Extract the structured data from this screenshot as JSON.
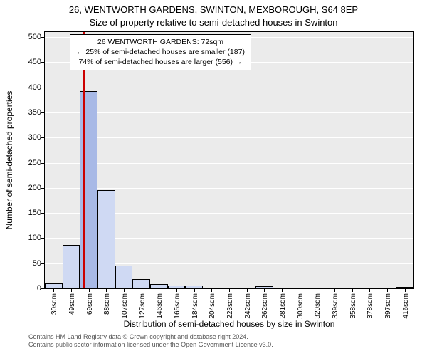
{
  "title_line1": "26, WENTWORTH GARDENS, SWINTON, MEXBOROUGH, S64 8EP",
  "title_line2": "Size of property relative to semi-detached houses in Swinton",
  "ylabel": "Number of semi-detached properties",
  "xlabel": "Distribution of semi-detached houses by size in Swinton",
  "footer_line1": "Contains HM Land Registry data © Crown copyright and database right 2024.",
  "footer_line2": "Contains public sector information licensed under the Open Government Licence v3.0.",
  "chart": {
    "type": "histogram",
    "background_color": "#ebebeb",
    "grid_color": "#ffffff",
    "border_color": "#000000",
    "bar_fill": "#cfd9f3",
    "bar_border": "#000000",
    "highlight_fill": "#a8b9e6",
    "vline_color": "#cc0000",
    "ylim": [
      0,
      510
    ],
    "yticks": [
      0,
      50,
      100,
      150,
      200,
      250,
      300,
      350,
      400,
      450,
      500
    ],
    "xlim": [
      0,
      21
    ],
    "xticks": [
      {
        "pos": 0.5,
        "label": "30sqm"
      },
      {
        "pos": 1.5,
        "label": "49sqm"
      },
      {
        "pos": 2.5,
        "label": "69sqm"
      },
      {
        "pos": 3.5,
        "label": "88sqm"
      },
      {
        "pos": 4.5,
        "label": "107sqm"
      },
      {
        "pos": 5.5,
        "label": "127sqm"
      },
      {
        "pos": 6.5,
        "label": "146sqm"
      },
      {
        "pos": 7.5,
        "label": "165sqm"
      },
      {
        "pos": 8.5,
        "label": "184sqm"
      },
      {
        "pos": 9.5,
        "label": "204sqm"
      },
      {
        "pos": 10.5,
        "label": "223sqm"
      },
      {
        "pos": 11.5,
        "label": "242sqm"
      },
      {
        "pos": 12.5,
        "label": "262sqm"
      },
      {
        "pos": 13.5,
        "label": "281sqm"
      },
      {
        "pos": 14.5,
        "label": "300sqm"
      },
      {
        "pos": 15.5,
        "label": "320sqm"
      },
      {
        "pos": 16.5,
        "label": "339sqm"
      },
      {
        "pos": 17.5,
        "label": "358sqm"
      },
      {
        "pos": 18.5,
        "label": "378sqm"
      },
      {
        "pos": 19.5,
        "label": "397sqm"
      },
      {
        "pos": 20.5,
        "label": "416sqm"
      }
    ],
    "bars": [
      {
        "x": 0,
        "value": 10,
        "highlight": false
      },
      {
        "x": 1,
        "value": 87,
        "highlight": false
      },
      {
        "x": 2,
        "value": 393,
        "highlight": true
      },
      {
        "x": 3,
        "value": 195,
        "highlight": false
      },
      {
        "x": 4,
        "value": 45,
        "highlight": false
      },
      {
        "x": 5,
        "value": 18,
        "highlight": false
      },
      {
        "x": 6,
        "value": 9,
        "highlight": false
      },
      {
        "x": 7,
        "value": 6,
        "highlight": false
      },
      {
        "x": 8,
        "value": 6,
        "highlight": false
      },
      {
        "x": 9,
        "value": 0,
        "highlight": false
      },
      {
        "x": 10,
        "value": 0,
        "highlight": false
      },
      {
        "x": 11,
        "value": 0,
        "highlight": false
      },
      {
        "x": 12,
        "value": 4,
        "highlight": false
      },
      {
        "x": 13,
        "value": 0,
        "highlight": false
      },
      {
        "x": 14,
        "value": 0,
        "highlight": false
      },
      {
        "x": 15,
        "value": 0,
        "highlight": false
      },
      {
        "x": 16,
        "value": 0,
        "highlight": false
      },
      {
        "x": 17,
        "value": 0,
        "highlight": false
      },
      {
        "x": 18,
        "value": 0,
        "highlight": false
      },
      {
        "x": 19,
        "value": 0,
        "highlight": false
      },
      {
        "x": 20,
        "value": 3,
        "highlight": false
      }
    ],
    "vline_x": 2.18
  },
  "infobox": {
    "line1": "26 WENTWORTH GARDENS: 72sqm",
    "line2": "← 25% of semi-detached houses are smaller (187)",
    "line3": "74% of semi-detached houses are larger (556) →"
  }
}
